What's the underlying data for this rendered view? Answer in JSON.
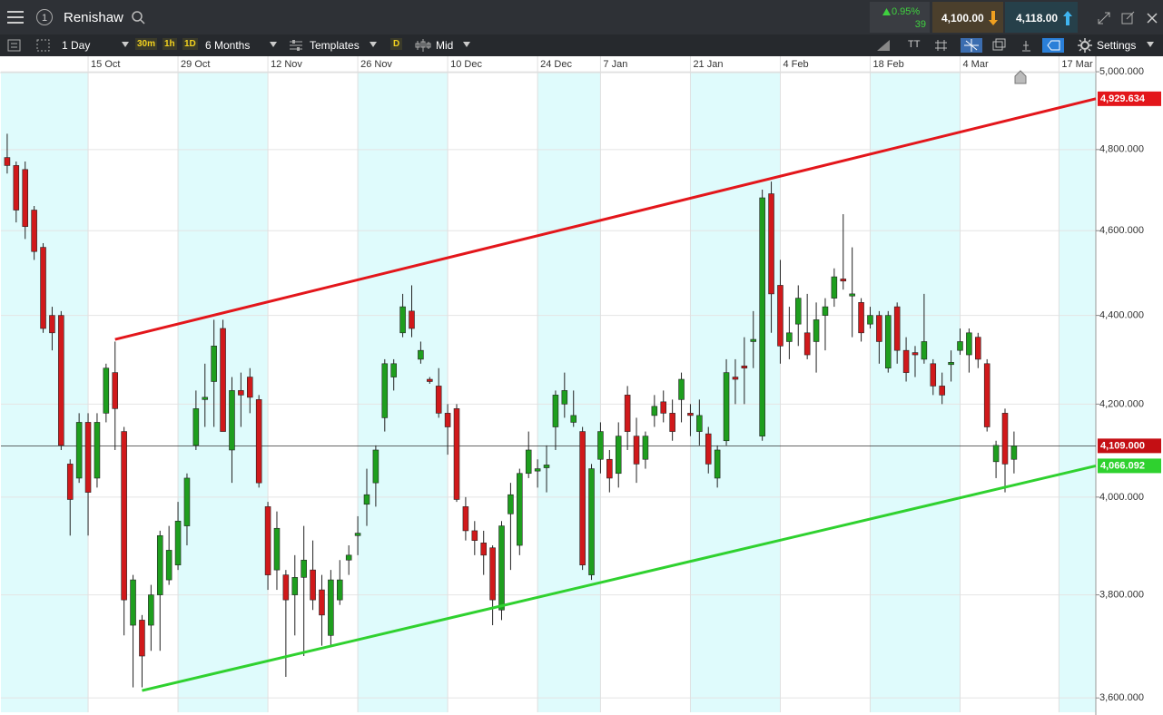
{
  "toolbar": {
    "symbol": "Renishaw",
    "change_percent": "0.95%",
    "change_points": "39",
    "sell": "4,100.00",
    "buy": "4,118.00",
    "interval": "1 Day",
    "intervals": [
      "30m",
      "1h",
      "1D"
    ],
    "range": "6 Months",
    "templates": "Templates",
    "d_button": "D",
    "price_type": "Mid",
    "tt_button": "TT",
    "settings": "Settings"
  },
  "chart_data": {
    "type": "candlestick",
    "log_scale": true,
    "grid": true,
    "up_color": "#1e9e1e",
    "down_color": "#d0191b",
    "ylim": [
      3573,
      5036
    ],
    "xlim": [
      -0.7,
      121.1
    ],
    "yticks": [
      {
        "value": 3600,
        "label": "3,600.000"
      },
      {
        "value": 3800,
        "label": "3,800.000"
      },
      {
        "value": 4000,
        "label": "4,000.000"
      },
      {
        "value": 4200,
        "label": "4,200.000"
      },
      {
        "value": 4400,
        "label": "4,400.000"
      },
      {
        "value": 4600,
        "label": "4,600.000"
      },
      {
        "value": 4800,
        "label": "4,800.000"
      },
      {
        "value": 5000,
        "label": "5,000.000"
      }
    ],
    "xticks": [
      {
        "value": 9,
        "label": "15 Oct"
      },
      {
        "value": 19,
        "label": "29 Oct"
      },
      {
        "value": 29,
        "label": "12 Nov"
      },
      {
        "value": 39,
        "label": "26 Nov"
      },
      {
        "value": 49,
        "label": "10 Dec"
      },
      {
        "value": 59,
        "label": "24 Dec"
      },
      {
        "value": 66,
        "label": "7 Jan"
      },
      {
        "value": 76,
        "label": "21 Jan"
      },
      {
        "value": 86,
        "label": "4 Feb"
      },
      {
        "value": 96,
        "label": "18 Feb"
      },
      {
        "value": 106,
        "label": "4 Mar"
      },
      {
        "value": 117,
        "label": "17 Mar"
      }
    ],
    "open": [
      4780,
      4760,
      4750,
      4650,
      4560,
      4400,
      4400,
      4070,
      4040,
      4160,
      4040,
      4180,
      4270,
      4140,
      3740,
      3750,
      3740,
      3800,
      3830,
      3860,
      3940,
      4110,
      4210,
      4250,
      4370,
      4100,
      4230,
      4260,
      4210,
      3980,
      3850,
      3840,
      3800,
      3835,
      3850,
      3810,
      3720,
      3790,
      3870,
      3920,
      3985,
      4030,
      4170,
      4260,
      4360,
      4410,
      4300,
      4255,
      4240,
      4180,
      4190,
      3980,
      3930,
      3905,
      3895,
      3770,
      3965,
      3900,
      4050,
      4055,
      4062,
      4150,
      4200,
      4160,
      4140,
      3840,
      4080,
      4080,
      4050,
      4220,
      4130,
      4080,
      4175,
      4205,
      4180,
      4210,
      4180,
      4140,
      4135,
      4040,
      4120,
      4260,
      4285,
      4340,
      4130,
      4690,
      4470,
      4340,
      4380,
      4360,
      4340,
      4400,
      4440,
      4485,
      4445,
      4430,
      4380,
      4400,
      4280,
      4420,
      4320,
      4315,
      4300,
      4290,
      4240,
      4288,
      4320,
      4310,
      4350,
      4290,
      4075,
      4180,
      4080
    ],
    "high": [
      4840,
      4770,
      4770,
      4660,
      4570,
      4420,
      4410,
      4080,
      4180,
      4180,
      4180,
      4290,
      4340,
      4150,
      3840,
      3760,
      3820,
      3930,
      3940,
      3990,
      4050,
      4230,
      4290,
      4390,
      4390,
      4260,
      4270,
      4280,
      4220,
      3990,
      3970,
      3850,
      3880,
      3940,
      3910,
      3840,
      3850,
      3870,
      3900,
      3960,
      4060,
      4110,
      4300,
      4300,
      4450,
      4470,
      4340,
      4260,
      4280,
      4200,
      4200,
      4000,
      3950,
      3930,
      3900,
      3950,
      4030,
      4060,
      4140,
      4080,
      4110,
      4230,
      4270,
      4230,
      4150,
      4070,
      4160,
      4100,
      4160,
      4240,
      4170,
      4140,
      4220,
      4230,
      4210,
      4270,
      4200,
      4210,
      4150,
      4110,
      4300,
      4300,
      4350,
      4410,
      4700,
      4720,
      4530,
      4420,
      4470,
      4450,
      4430,
      4440,
      4510,
      4640,
      4560,
      4440,
      4420,
      4410,
      4410,
      4430,
      4350,
      4330,
      4450,
      4300,
      4270,
      4320,
      4370,
      4370,
      4360,
      4300,
      4120,
      4190,
      4140
    ],
    "low": [
      4740,
      4620,
      4580,
      4530,
      4360,
      4320,
      4100,
      3920,
      4030,
      3920,
      4020,
      4160,
      4100,
      3720,
      3620,
      3620,
      3690,
      3690,
      3820,
      3850,
      3900,
      4100,
      4150,
      4150,
      4140,
      4030,
      4150,
      4180,
      4020,
      3810,
      3810,
      3640,
      3720,
      3680,
      3770,
      3700,
      3700,
      3780,
      3840,
      3880,
      3940,
      3980,
      4140,
      4230,
      4350,
      4350,
      4290,
      4245,
      4170,
      4090,
      3990,
      3910,
      3880,
      3840,
      3740,
      3750,
      3850,
      3880,
      4040,
      4020,
      4010,
      4100,
      4170,
      4150,
      3850,
      3830,
      4050,
      4010,
      4020,
      4100,
      4030,
      4060,
      4150,
      4160,
      4120,
      4160,
      4130,
      4110,
      4050,
      4020,
      4110,
      4200,
      4200,
      4280,
      4120,
      4360,
      4290,
      4300,
      4330,
      4300,
      4270,
      4320,
      4420,
      4460,
      4350,
      4340,
      4370,
      4290,
      4270,
      4290,
      4250,
      4260,
      4290,
      4220,
      4200,
      4250,
      4310,
      4270,
      4280,
      4140,
      4040,
      4010,
      4050
    ],
    "close": [
      4760,
      4650,
      4610,
      4550,
      4370,
      4360,
      4110,
      3995,
      4160,
      4010,
      4160,
      4280,
      4190,
      3790,
      3830,
      3680,
      3800,
      3920,
      3890,
      3950,
      4040,
      4190,
      4215,
      4330,
      4140,
      4230,
      4220,
      4215,
      4030,
      3840,
      3935,
      3790,
      3835,
      3870,
      3790,
      3760,
      3830,
      3830,
      3880,
      3925,
      4005,
      4100,
      4290,
      4290,
      4420,
      4370,
      4320,
      4250,
      4180,
      4150,
      3995,
      3930,
      3910,
      3880,
      3790,
      3940,
      4005,
      4050,
      4100,
      4060,
      4068,
      4220,
      4230,
      4175,
      3860,
      4060,
      4140,
      4040,
      4130,
      4140,
      4070,
      4130,
      4195,
      4180,
      4140,
      4255,
      4175,
      4175,
      4070,
      4100,
      4270,
      4255,
      4280,
      4345,
      4680,
      4450,
      4330,
      4360,
      4440,
      4310,
      4390,
      4420,
      4490,
      4480,
      4450,
      4360,
      4400,
      4340,
      4400,
      4320,
      4270,
      4310,
      4340,
      4240,
      4220,
      4293,
      4340,
      4360,
      4300,
      4150,
      4110,
      4070,
      4109
    ],
    "trendlines": [
      {
        "color": "#e3161b",
        "x": [
          12,
          121.1
        ],
        "values": [
          4345,
          4929.634
        ],
        "value_labels": [
          null,
          "4,929.634"
        ]
      },
      {
        "color": "#2fd12f",
        "x": [
          15,
          121.1
        ],
        "values": [
          3614,
          4066.092
        ],
        "value_labels": [
          null,
          "4,066.092"
        ]
      }
    ],
    "last_price": {
      "value": 4109,
      "label": "4,109.000",
      "color": "#c40f14"
    }
  }
}
